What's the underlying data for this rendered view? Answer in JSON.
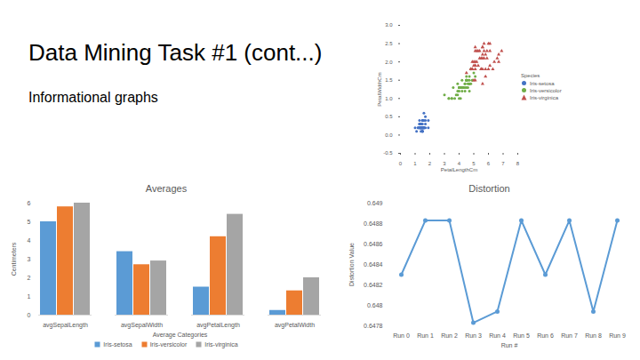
{
  "slide": {
    "title": "Data Mining Task #1 (cont...)",
    "subtitle": "Informational graphs"
  },
  "chart_data": [
    {
      "type": "scatter",
      "x_label": "PetalLengthCm",
      "y_label": "PetalWidthCm",
      "legend_title": "Species",
      "legend": "right",
      "xlim": [
        0,
        8
      ],
      "xticks": [
        0,
        1,
        2,
        3,
        4,
        5,
        6,
        7,
        8
      ],
      "ylim": [
        -0.5,
        3
      ],
      "yticks": [
        -0.5,
        {
          "value": 0,
          "label": "0.0"
        },
        0.5,
        {
          "value": 1,
          "label": "1.0"
        },
        1.5,
        {
          "value": 2,
          "label": "2.0"
        },
        2.5,
        {
          "value": 3,
          "label": "3.0"
        }
      ],
      "series": [
        {
          "name": "Iris-setosa",
          "color": "#4472c4",
          "marker": "circle",
          "x": [
            1.4,
            1.4,
            1.3,
            1.5,
            1.4,
            1.7,
            1.4,
            1.5,
            1.4,
            1.5,
            1.5,
            1.6,
            1.4,
            1.1,
            1.2,
            1.5,
            1.3,
            1.4,
            1.7,
            1.5,
            1.7,
            1.5,
            1.0,
            1.7,
            1.9,
            1.6,
            1.6,
            1.5,
            1.4,
            1.6,
            1.6,
            1.5,
            1.5,
            1.4,
            1.5,
            1.2,
            1.3,
            1.5,
            1.3,
            1.5,
            1.3,
            1.3,
            1.3,
            1.6,
            1.9,
            1.4,
            1.6,
            1.4,
            1.5,
            1.4
          ],
          "values": [
            0.2,
            0.2,
            0.2,
            0.2,
            0.2,
            0.4,
            0.3,
            0.2,
            0.2,
            0.1,
            0.2,
            0.2,
            0.1,
            0.1,
            0.2,
            0.4,
            0.4,
            0.3,
            0.3,
            0.3,
            0.2,
            0.4,
            0.2,
            0.5,
            0.2,
            0.2,
            0.4,
            0.2,
            0.2,
            0.2,
            0.2,
            0.4,
            0.1,
            0.2,
            0.1,
            0.2,
            0.2,
            0.1,
            0.2,
            0.2,
            0.3,
            0.3,
            0.2,
            0.6,
            0.4,
            0.3,
            0.2,
            0.2,
            0.2,
            0.2
          ]
        },
        {
          "name": "Iris-versicolor",
          "color": "#70ad47",
          "marker": "circle",
          "x": [
            4.7,
            4.5,
            4.9,
            4.0,
            4.6,
            4.5,
            4.7,
            3.3,
            4.6,
            3.9,
            3.5,
            4.2,
            4.0,
            4.7,
            3.6,
            4.4,
            4.5,
            4.1,
            4.5,
            3.9,
            4.8,
            4.0,
            4.9,
            4.7,
            4.3,
            4.4,
            4.8,
            5.0,
            4.5,
            3.5,
            3.8,
            3.7,
            3.9,
            5.1,
            4.5,
            4.5,
            4.7,
            4.4,
            4.1,
            4.0,
            4.4,
            4.6,
            4.0,
            3.3,
            4.2,
            4.2,
            4.2,
            4.3,
            3.0,
            4.1
          ],
          "values": [
            1.4,
            1.5,
            1.5,
            1.3,
            1.5,
            1.3,
            1.6,
            1.0,
            1.3,
            1.4,
            1.0,
            1.5,
            1.0,
            1.4,
            1.3,
            1.4,
            1.5,
            1.0,
            1.5,
            1.1,
            1.8,
            1.3,
            1.5,
            1.2,
            1.3,
            1.4,
            1.4,
            1.7,
            1.5,
            1.0,
            1.1,
            1.0,
            1.2,
            1.6,
            1.5,
            1.6,
            1.5,
            1.3,
            1.3,
            1.3,
            1.2,
            1.4,
            1.2,
            1.0,
            1.3,
            1.2,
            1.3,
            1.3,
            1.1,
            1.3
          ]
        },
        {
          "name": "Iris-virginica",
          "color": "#c0504d",
          "marker": "triangle",
          "x": [
            6.0,
            5.1,
            5.9,
            5.6,
            5.8,
            6.6,
            4.5,
            6.3,
            5.8,
            6.1,
            5.1,
            5.3,
            5.5,
            5.0,
            5.1,
            5.3,
            5.5,
            6.7,
            6.9,
            5.0,
            5.7,
            4.9,
            6.7,
            4.9,
            5.7,
            6.0,
            4.8,
            4.9,
            5.6,
            5.8,
            6.1,
            6.4,
            5.6,
            5.1,
            5.6,
            6.1,
            5.6,
            5.5,
            4.8,
            5.4,
            5.6,
            5.1,
            5.1,
            5.9,
            5.7,
            5.2,
            5.0,
            5.2,
            5.4,
            5.1
          ],
          "values": [
            2.5,
            1.9,
            2.1,
            1.8,
            2.2,
            2.1,
            1.7,
            1.8,
            1.8,
            2.5,
            2.0,
            1.9,
            2.1,
            2.0,
            2.4,
            2.3,
            1.8,
            2.2,
            2.3,
            1.5,
            2.3,
            2.0,
            2.0,
            1.8,
            2.1,
            1.8,
            1.8,
            1.8,
            2.1,
            1.6,
            1.9,
            2.0,
            2.2,
            1.5,
            1.4,
            2.3,
            2.4,
            1.8,
            1.8,
            2.1,
            2.4,
            2.3,
            1.9,
            2.3,
            2.5,
            2.3,
            1.9,
            2.0,
            2.3,
            1.8
          ]
        }
      ]
    },
    {
      "type": "bar",
      "title": "Averages",
      "x_label": "Average Categories",
      "y_label": "Centimeters",
      "categories": [
        "avgSepalLength",
        "avgSepalWidth",
        "avgPetalLength",
        "avgPetalWidth"
      ],
      "series": [
        {
          "name": "Iris-setosa",
          "color": "#5b9bd5",
          "values": [
            5.0,
            3.4,
            1.5,
            0.25
          ]
        },
        {
          "name": "Iris-versicolor",
          "color": "#ed7d31",
          "values": [
            5.8,
            2.7,
            4.2,
            1.3
          ]
        },
        {
          "name": "Iris-virginica",
          "color": "#a5a5a5",
          "values": [
            6.0,
            2.9,
            5.4,
            2.0
          ]
        }
      ],
      "ylim": [
        0,
        6
      ],
      "yticks": [
        0,
        1,
        2,
        3,
        4,
        5,
        6
      ],
      "legend": "bottom"
    },
    {
      "type": "line",
      "title": "Distortion",
      "x_label": "Run #",
      "y_label": "Distortion Value",
      "categories": [
        "Run 0",
        "Run 1",
        "Run 2",
        "Run 3",
        "Run 4",
        "Run 5",
        "Run 6",
        "Run 7",
        "Run 8",
        "Run 9"
      ],
      "values": [
        0.6483,
        0.64883,
        0.64883,
        0.64783,
        0.64794,
        0.64883,
        0.6483,
        0.64883,
        0.64794,
        0.64883
      ],
      "color": "#5b9bd5",
      "marker": "circle",
      "ylim": [
        0.6478,
        0.649
      ],
      "yticks": [
        0.6478,
        0.648,
        0.6482,
        0.6484,
        0.6486,
        0.6488,
        0.649
      ]
    }
  ]
}
